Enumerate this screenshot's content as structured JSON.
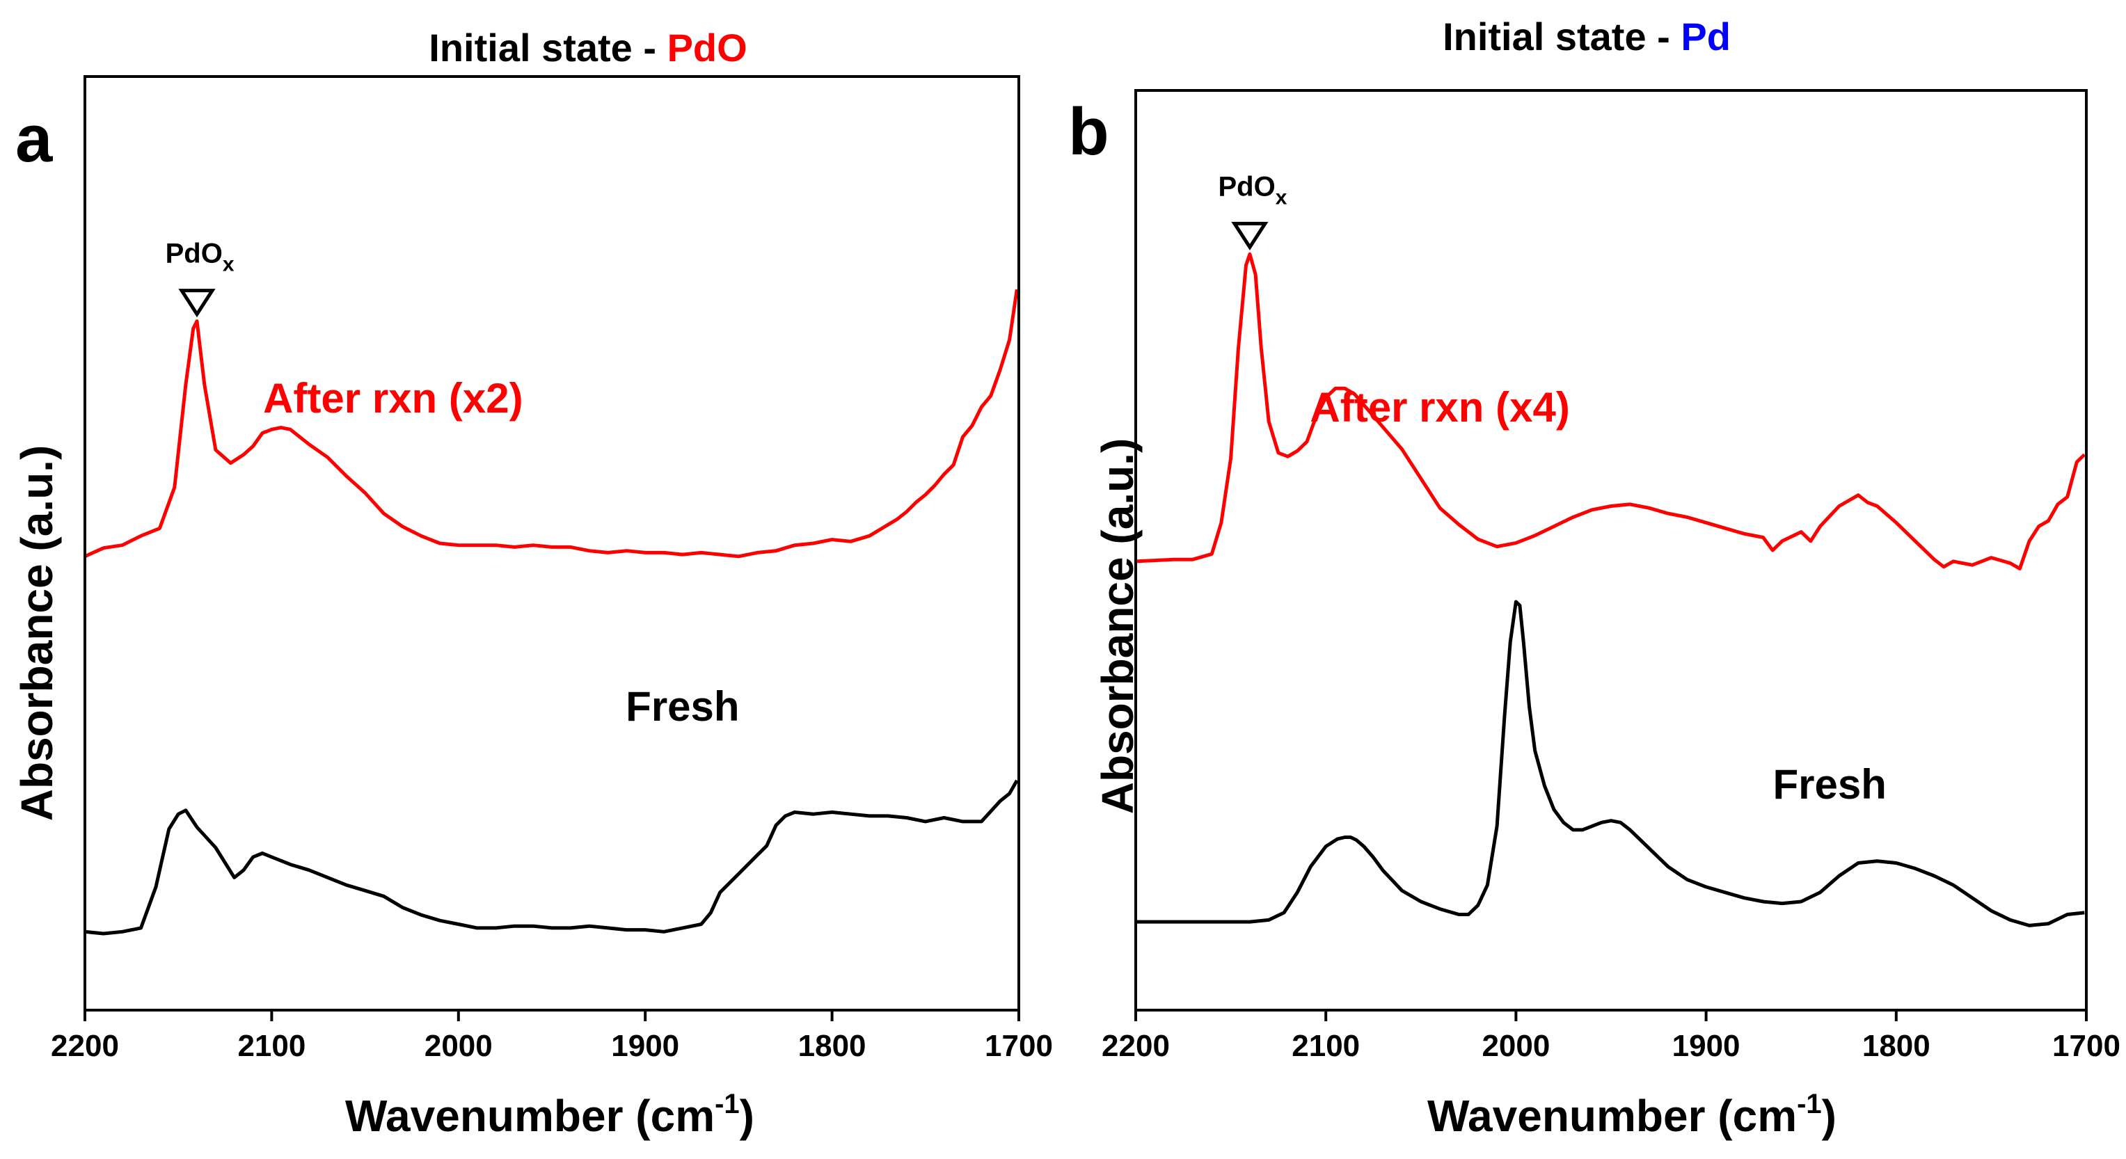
{
  "colors": {
    "red": "#ff0000",
    "blue": "#0000ff",
    "black": "#000000"
  },
  "chart_data": [
    {
      "type": "line",
      "panel_label": "a",
      "title": {
        "prefix": "Initial state - ",
        "highlight": "PdO",
        "highlight_color": "#ff0000"
      },
      "xlabel": "Wavenumber (cm",
      "xlabel_sup": "-1",
      "xlabel_suffix": ")",
      "ylabel": "Absorbance (a.u.)",
      "xlim": [
        2200,
        1700
      ],
      "ylim": [
        0,
        100
      ],
      "xticks": [
        2200,
        2100,
        2000,
        1900,
        1800,
        1700
      ],
      "annotation": {
        "text": "PdO",
        "sub": "x",
        "x": 2140
      },
      "series": [
        {
          "name": "After rxn (x2)",
          "color": "#ff0000",
          "label_x": 2035,
          "label_y": 64,
          "x": [
            2200,
            2190,
            2180,
            2170,
            2160,
            2152,
            2146,
            2142,
            2140,
            2136,
            2130,
            2122,
            2115,
            2110,
            2105,
            2100,
            2095,
            2090,
            2080,
            2070,
            2060,
            2050,
            2040,
            2030,
            2020,
            2010,
            2000,
            1990,
            1980,
            1970,
            1960,
            1950,
            1940,
            1930,
            1920,
            1910,
            1900,
            1890,
            1880,
            1870,
            1860,
            1850,
            1840,
            1830,
            1820,
            1810,
            1800,
            1790,
            1780,
            1770,
            1765,
            1760,
            1755,
            1750,
            1745,
            1740,
            1735,
            1730,
            1725,
            1720,
            1715,
            1710,
            1705,
            1701
          ],
          "values": [
            48.6,
            49.5,
            49.8,
            50.8,
            51.6,
            56.0,
            67.0,
            73.0,
            73.8,
            67.0,
            60.0,
            58.6,
            59.5,
            60.4,
            61.8,
            62.2,
            62.4,
            62.2,
            60.6,
            59.2,
            57.2,
            55.4,
            53.2,
            51.8,
            50.8,
            50.0,
            49.8,
            49.8,
            49.8,
            49.6,
            49.8,
            49.6,
            49.6,
            49.2,
            49.0,
            49.2,
            49.0,
            49.0,
            48.8,
            49.0,
            48.8,
            48.6,
            49.0,
            49.2,
            49.8,
            50.0,
            50.4,
            50.2,
            50.8,
            52.0,
            52.6,
            53.4,
            54.4,
            55.2,
            56.2,
            57.4,
            58.4,
            61.4,
            62.6,
            64.6,
            65.8,
            68.6,
            71.8,
            77.2
          ]
        },
        {
          "name": "Fresh",
          "color": "#000000",
          "label_x": 1880,
          "label_y": 31,
          "x": [
            2200,
            2190,
            2180,
            2170,
            2162,
            2155,
            2150,
            2146,
            2140,
            2130,
            2120,
            2115,
            2110,
            2105,
            2100,
            2090,
            2080,
            2070,
            2060,
            2050,
            2040,
            2030,
            2020,
            2010,
            2000,
            1990,
            1980,
            1970,
            1960,
            1950,
            1940,
            1930,
            1920,
            1910,
            1900,
            1890,
            1880,
            1870,
            1865,
            1860,
            1850,
            1840,
            1835,
            1830,
            1825,
            1820,
            1810,
            1800,
            1790,
            1780,
            1770,
            1760,
            1750,
            1740,
            1730,
            1720,
            1710,
            1705,
            1701
          ],
          "values": [
            8.4,
            8.2,
            8.4,
            8.8,
            13.2,
            19.4,
            21.0,
            21.4,
            19.6,
            17.4,
            14.2,
            15.0,
            16.4,
            16.8,
            16.4,
            15.6,
            15.0,
            14.2,
            13.4,
            12.8,
            12.2,
            11.0,
            10.2,
            9.6,
            9.2,
            8.8,
            8.8,
            9.0,
            9.0,
            8.8,
            8.8,
            9.0,
            8.8,
            8.6,
            8.6,
            8.4,
            8.8,
            9.2,
            10.4,
            12.6,
            14.6,
            16.6,
            17.6,
            19.8,
            20.8,
            21.2,
            21.0,
            21.2,
            21.0,
            20.8,
            20.8,
            20.6,
            20.2,
            20.6,
            20.2,
            20.2,
            22.4,
            23.2,
            24.6
          ]
        }
      ]
    },
    {
      "type": "line",
      "panel_label": "b",
      "title": {
        "prefix": "Initial state - ",
        "highlight": "Pd",
        "highlight_color": "#0000ff"
      },
      "xlabel": "Wavenumber (cm",
      "xlabel_sup": "-1",
      "xlabel_suffix": ")",
      "ylabel": "Absorbance (a.u.)",
      "xlim": [
        2200,
        1700
      ],
      "ylim": [
        0,
        100
      ],
      "xticks": [
        2200,
        2100,
        2000,
        1900,
        1800,
        1700
      ],
      "annotation": {
        "text": "PdO",
        "sub": "x",
        "x": 2140
      },
      "series": [
        {
          "name": "After rxn (x4)",
          "color": "#ff0000",
          "label_x": 2040,
          "label_y": 64,
          "x": [
            2200,
            2180,
            2170,
            2160,
            2155,
            2150,
            2146,
            2142,
            2140,
            2137,
            2134,
            2130,
            2125,
            2120,
            2115,
            2110,
            2105,
            2100,
            2095,
            2090,
            2085,
            2080,
            2070,
            2060,
            2050,
            2040,
            2030,
            2020,
            2010,
            2000,
            1990,
            1980,
            1970,
            1960,
            1950,
            1940,
            1930,
            1920,
            1910,
            1900,
            1890,
            1880,
            1870,
            1865,
            1860,
            1850,
            1845,
            1840,
            1830,
            1820,
            1815,
            1810,
            1800,
            1790,
            1780,
            1775,
            1770,
            1760,
            1750,
            1740,
            1735,
            1730,
            1725,
            1720,
            1715,
            1710,
            1705,
            1701
          ],
          "values": [
            48.8,
            49.0,
            49.0,
            49.6,
            53.0,
            60.0,
            72.0,
            81.0,
            82.2,
            80.0,
            72.0,
            64.0,
            60.6,
            60.2,
            60.8,
            61.8,
            64.6,
            66.6,
            67.6,
            67.6,
            67.0,
            65.8,
            63.4,
            61.0,
            57.8,
            54.6,
            52.8,
            51.2,
            50.4,
            50.8,
            51.6,
            52.6,
            53.6,
            54.4,
            54.8,
            55.0,
            54.6,
            54.0,
            53.6,
            53.0,
            52.4,
            51.8,
            51.4,
            50.0,
            51.0,
            52.0,
            51.0,
            52.6,
            54.8,
            56.0,
            55.2,
            54.8,
            53.0,
            51.0,
            49.0,
            48.2,
            48.8,
            48.4,
            49.2,
            48.6,
            48.0,
            51.0,
            52.6,
            53.2,
            55.0,
            55.8,
            59.6,
            60.4
          ]
        },
        {
          "name": "Fresh",
          "color": "#000000",
          "label_x": 1835,
          "label_y": 23,
          "x": [
            2200,
            2180,
            2160,
            2140,
            2130,
            2122,
            2115,
            2108,
            2100,
            2094,
            2090,
            2087,
            2084,
            2080,
            2075,
            2070,
            2060,
            2050,
            2040,
            2030,
            2025,
            2020,
            2015,
            2010,
            2006,
            2003,
            2000,
            1998,
            1996,
            1993,
            1990,
            1985,
            1980,
            1975,
            1970,
            1965,
            1960,
            1955,
            1950,
            1945,
            1940,
            1930,
            1920,
            1910,
            1900,
            1890,
            1880,
            1870,
            1860,
            1850,
            1840,
            1830,
            1820,
            1810,
            1800,
            1790,
            1780,
            1770,
            1760,
            1750,
            1740,
            1730,
            1720,
            1710,
            1701
          ],
          "values": [
            9.6,
            9.6,
            9.6,
            9.6,
            9.8,
            10.6,
            12.8,
            15.6,
            17.8,
            18.6,
            18.8,
            18.8,
            18.5,
            17.8,
            16.6,
            15.2,
            13.0,
            11.8,
            11.0,
            10.4,
            10.4,
            11.4,
            13.6,
            20.0,
            32.0,
            40.0,
            44.4,
            44.0,
            40.0,
            33.0,
            28.2,
            24.4,
            21.8,
            20.4,
            19.6,
            19.6,
            20.0,
            20.4,
            20.6,
            20.4,
            19.6,
            17.6,
            15.6,
            14.2,
            13.4,
            12.8,
            12.2,
            11.8,
            11.6,
            11.8,
            12.8,
            14.6,
            16.0,
            16.2,
            16.0,
            15.4,
            14.6,
            13.6,
            12.2,
            10.8,
            9.8,
            9.2,
            9.4,
            10.4,
            10.6
          ]
        }
      ]
    }
  ]
}
